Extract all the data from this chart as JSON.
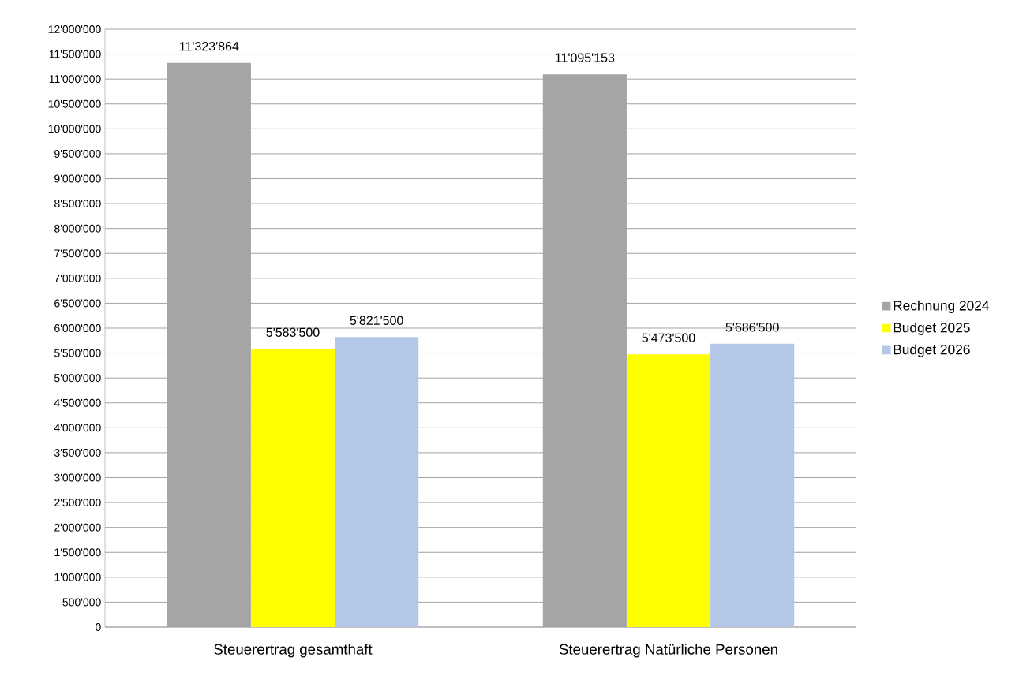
{
  "chart_data": {
    "type": "bar",
    "categories": [
      "Steuerertrag gesamthaft",
      "Steuerertrag Natürliche Personen"
    ],
    "series": [
      {
        "name": "Rechnung 2024",
        "color": "#a5a5a5",
        "values": [
          11323864,
          11095153
        ],
        "value_labels": [
          "11'323'864",
          "11'095'153"
        ]
      },
      {
        "name": "Budget 2025",
        "color": "#ffff00",
        "values": [
          5583500,
          5473500
        ],
        "value_labels": [
          "5'583'500",
          "5'473'500"
        ]
      },
      {
        "name": "Budget 2026",
        "color": "#b4c7e7",
        "values": [
          5821500,
          5686500
        ],
        "value_labels": [
          "5'821'500",
          "5'686'500"
        ]
      }
    ],
    "ylim": [
      0,
      12000000
    ],
    "yticks": [
      0,
      {
        "value": 500000,
        "label": "500'000"
      },
      {
        "value": 1000000,
        "label": "1'000'000"
      },
      {
        "value": 1500000,
        "label": "1'500'000"
      },
      {
        "value": 2000000,
        "label": "2'000'000"
      },
      {
        "value": 2500000,
        "label": "2'500'000"
      },
      {
        "value": 3000000,
        "label": "3'000'000"
      },
      {
        "value": 3500000,
        "label": "3'500'000"
      },
      {
        "value": 4000000,
        "label": "4'000'000"
      },
      {
        "value": 4500000,
        "label": "4'500'000"
      },
      {
        "value": 5000000,
        "label": "5'000'000"
      },
      {
        "value": 5500000,
        "label": "5'500'000"
      },
      {
        "value": 6000000,
        "label": "6'000'000"
      },
      {
        "value": 6500000,
        "label": "6'500'000"
      },
      {
        "value": 7000000,
        "label": "7'000'000"
      },
      {
        "value": 7500000,
        "label": "7'500'000"
      },
      {
        "value": 8000000,
        "label": "8'000'000"
      },
      {
        "value": 8500000,
        "label": "8'500'000"
      },
      {
        "value": 9000000,
        "label": "9'000'000"
      },
      {
        "value": 9500000,
        "label": "9'500'000"
      },
      {
        "value": 10000000,
        "label": "10'000'000"
      },
      {
        "value": 10500000,
        "label": "10'500'000"
      },
      {
        "value": 11000000,
        "label": "11'000'000"
      },
      {
        "value": 11500000,
        "label": "11'500'000"
      },
      {
        "value": 12000000,
        "label": "12'000'000"
      }
    ],
    "grid": "y",
    "legend": "right"
  }
}
